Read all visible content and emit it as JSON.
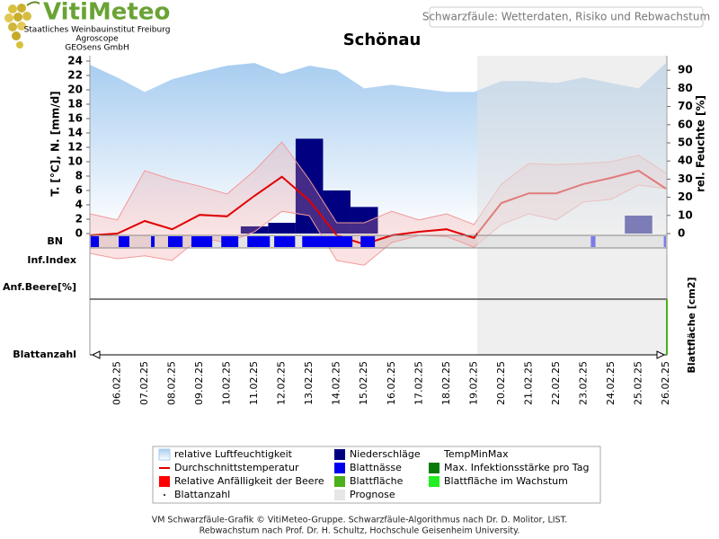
{
  "header": {
    "logo": "VitiMeteo",
    "institutes": [
      "Staatliches Weinbauinstitut Freiburg",
      "Agroscope",
      "GEOsens GmbH"
    ],
    "page_title": "Schwarzfäule: Wetterdaten, Risiko und Rebwachstum"
  },
  "chart_data": {
    "type": "combo",
    "title": "Schönau",
    "ylabel": "T. [°C], N. [mm/d]",
    "y2label": "rel. Feuchte [%]",
    "row_labels": [
      "BN",
      "Inf.Index",
      "Anf.Beere[%]",
      "Blattanzahl"
    ],
    "right_row_label": "Blattfläche [cm2]",
    "categories": [
      null,
      "06.02.25",
      "07.02.25",
      "08.02.25",
      "09.02.25",
      "10.02.25",
      "11.02.25",
      "12.02.25",
      "13.02.25",
      "14.02.25",
      "15.02.25",
      "16.02.25",
      "17.02.25",
      "18.02.25",
      "19.02.25",
      "20.02.25",
      "21.02.25",
      "22.02.25",
      "23.02.25",
      "24.02.25",
      "25.02.25",
      "26.02.25"
    ],
    "ylim": [
      -4.75,
      25
    ],
    "yticks": [
      0,
      2,
      4,
      6,
      8,
      10,
      12,
      14,
      16,
      18,
      20,
      22,
      24
    ],
    "y2lim": [
      -18.8,
      99
    ],
    "y2ticks": [
      0,
      10,
      20,
      30,
      40,
      50,
      60,
      70,
      80,
      90
    ],
    "humidity": {
      "color": "#a8cdf0",
      "axis": "y2",
      "values": [
        93,
        86,
        78,
        85,
        89,
        92.5,
        94,
        88,
        92.5,
        90,
        80,
        82,
        80,
        78,
        78,
        84,
        84,
        83,
        86,
        83,
        80,
        94
      ]
    },
    "precipitation": {
      "color": "#000080",
      "values": [
        0,
        0,
        0,
        0,
        0,
        0,
        1,
        1.5,
        13.2,
        6,
        3.7,
        0,
        0,
        0,
        0,
        0,
        0,
        0,
        0,
        0,
        2.5,
        0
      ]
    },
    "temp_minmax": {
      "color": "#f29a9a",
      "upper": [
        2.75,
        1.9,
        8.75,
        7.5,
        6.6,
        5.5,
        8.75,
        12.75,
        7.5,
        1.5,
        1.5,
        3.1,
        1.9,
        2.75,
        1.25,
        6.9,
        9.75,
        9.6,
        9.75,
        10,
        10.9,
        8.4
      ],
      "lower": [
        -2.75,
        -3.5,
        -3.1,
        -3.75,
        -0.6,
        -1.25,
        0.25,
        3.1,
        2.5,
        -3.75,
        -4.4,
        -1.25,
        -0.25,
        -0.4,
        -1.9,
        1.25,
        2.75,
        1.9,
        4.4,
        4.75,
        6.75,
        6.25
      ]
    },
    "temperature": {
      "color": "#e00000",
      "values": [
        -0.25,
        0,
        1.75,
        0.6,
        2.6,
        2.4,
        5.25,
        7.9,
        4.6,
        -0.25,
        -1.5,
        -0.25,
        0.25,
        0.6,
        -0.6,
        4.25,
        5.6,
        5.6,
        6.9,
        7.75,
        8.75,
        6.25
      ]
    },
    "leaf_wetness": {
      "color": "#0000ee",
      "start": [
        0.03,
        1.05,
        2.23,
        2.85,
        3.7,
        4.79,
        5.74,
        6.72,
        7.74,
        9.87,
        18.26,
        20.92
      ],
      "end": [
        0.33,
        1.44,
        2.36,
        3.38,
        4.46,
        5.41,
        6.56,
        7.48,
        9.57,
        10.39,
        18.43,
        21
      ]
    },
    "legend": [
      {
        "name": "relative Luftfeuchtigkeit",
        "color": "#a8cdf0",
        "symbol": "area"
      },
      {
        "name": "Durchschnittstemperatur",
        "color": "#e00000",
        "symbol": "line"
      },
      {
        "name": "Relative Anfälligkeit der Beere",
        "color": "#ff0000",
        "symbol": "square"
      },
      {
        "name": "Blattanzahl",
        "color": "#000000",
        "symbol": "dot"
      },
      {
        "name": "Niederschläge",
        "color": "#000080",
        "symbol": "square"
      },
      {
        "name": "Blattnässe",
        "color": "#0000ee",
        "symbol": "square"
      },
      {
        "name": "Blattfläche",
        "color": "#4caf1c",
        "symbol": "square"
      },
      {
        "name": "Prognose",
        "color": "#e6e6e6",
        "symbol": "square"
      },
      {
        "name": "TempMinMax",
        "color": "#f29a9a",
        "symbol": "none"
      },
      {
        "name": "Max. Infektionsstärke pro Tag",
        "color": "#0a7a0a",
        "symbol": "square"
      },
      {
        "name": "Blattfläche im Wachstum",
        "color": "#22ee22",
        "symbol": "square"
      }
    ]
  },
  "footer": [
    "VM Schwarzfäule-Grafik © VitiMeteo-Gruppe. Schwarzfäule-Algorithmus nach Dr. D. Molitor, LIST.",
    "Rebwachstum nach Prof. Dr. H. Schultz, Hochschule Geisenheim University."
  ]
}
